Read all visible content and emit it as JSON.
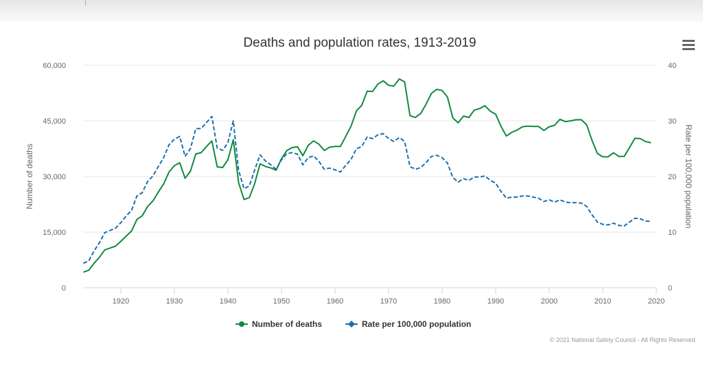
{
  "chart_data": {
    "type": "line",
    "title": "Deaths and population rates, 1913-2019",
    "xlabel": "",
    "ylabel": "Number of deaths",
    "y2label": "Rate per 100,000 population",
    "xlim": [
      1913,
      2020
    ],
    "ylim": [
      0,
      60000
    ],
    "y2lim": [
      0,
      40
    ],
    "x_ticks": [
      "1920",
      "1930",
      "1940",
      "1950",
      "1960",
      "1970",
      "1980",
      "1990",
      "2000",
      "2010",
      "2020"
    ],
    "y_ticks": [
      "0",
      "15,000",
      "30,000",
      "45,000",
      "60,000"
    ],
    "y2_ticks": [
      "0",
      "10",
      "20",
      "30",
      "40"
    ],
    "grid": true,
    "legend_position": "bottom-center",
    "colors": {
      "deaths": "#0f8a3c",
      "rate": "#1a6fb0"
    },
    "x": [
      1913,
      1914,
      1915,
      1916,
      1917,
      1918,
      1919,
      1920,
      1921,
      1922,
      1923,
      1924,
      1925,
      1926,
      1927,
      1928,
      1929,
      1930,
      1931,
      1932,
      1933,
      1934,
      1935,
      1936,
      1937,
      1938,
      1939,
      1940,
      1941,
      1942,
      1943,
      1944,
      1945,
      1946,
      1947,
      1948,
      1949,
      1950,
      1951,
      1952,
      1953,
      1954,
      1955,
      1956,
      1957,
      1958,
      1959,
      1960,
      1961,
      1962,
      1963,
      1964,
      1965,
      1966,
      1967,
      1968,
      1969,
      1970,
      1971,
      1972,
      1973,
      1974,
      1975,
      1976,
      1977,
      1978,
      1979,
      1980,
      1981,
      1982,
      1983,
      1984,
      1985,
      1986,
      1987,
      1988,
      1989,
      1990,
      1991,
      1992,
      1993,
      1994,
      1995,
      1996,
      1997,
      1998,
      1999,
      2000,
      2001,
      2002,
      2003,
      2004,
      2005,
      2006,
      2007,
      2008,
      2009,
      2010,
      2011,
      2012,
      2013,
      2014,
      2015,
      2016,
      2017,
      2018,
      2019
    ],
    "series": [
      {
        "name": "Number of deaths",
        "axis": "left",
        "style": "solid",
        "values": [
          4200,
          4700,
          6600,
          8200,
          10200,
          10700,
          11200,
          12500,
          13900,
          15300,
          18400,
          19400,
          21900,
          23400,
          25800,
          28000,
          31200,
          32900,
          33700,
          29500,
          31400,
          36100,
          36400,
          38100,
          39600,
          32600,
          32400,
          34500,
          39900,
          28300,
          23800,
          24300,
          28100,
          33400,
          32700,
          32300,
          31700,
          34800,
          37000,
          37800,
          38000,
          35600,
          38400,
          39600,
          38700,
          37000,
          37900,
          38100,
          38100,
          40800,
          43600,
          47700,
          49200,
          53000,
          52900,
          54900,
          55800,
          54600,
          54400,
          56300,
          55500,
          46400,
          45900,
          47000,
          49500,
          52400,
          53500,
          53200,
          51400,
          45800,
          44500,
          46300,
          45900,
          47900,
          48300,
          49100,
          47600,
          46800,
          43500,
          40900,
          41900,
          42500,
          43400,
          43600,
          43500,
          43500,
          42400,
          43400,
          43800,
          45400,
          44800,
          45000,
          45300,
          45300,
          43900,
          39700,
          36200,
          35300,
          35300,
          36400,
          35400,
          35400,
          37800,
          40300,
          40200,
          39400,
          39100
        ]
      },
      {
        "name": "Rate per 100,000 population",
        "axis": "right",
        "style": "dashed",
        "values": [
          4.4,
          4.8,
          6.6,
          8.1,
          9.9,
          10.3,
          10.7,
          11.7,
          12.9,
          13.9,
          16.5,
          17.1,
          19.1,
          20.1,
          21.8,
          23.4,
          25.7,
          26.7,
          27.2,
          23.6,
          25.0,
          28.6,
          28.6,
          29.7,
          30.8,
          25.1,
          24.7,
          26.1,
          30.0,
          21.1,
          17.8,
          18.3,
          21.2,
          23.9,
          22.8,
          22.1,
          21.3,
          23.0,
          24.1,
          24.3,
          24.0,
          22.1,
          23.4,
          23.7,
          22.7,
          21.3,
          21.5,
          21.2,
          20.8,
          22.0,
          23.1,
          25.0,
          25.4,
          27.1,
          26.8,
          27.5,
          27.7,
          26.8,
          26.3,
          27.0,
          26.3,
          21.8,
          21.3,
          21.6,
          22.5,
          23.6,
          23.8,
          23.4,
          22.4,
          19.8,
          19.0,
          19.6,
          19.3,
          19.9,
          19.9,
          20.1,
          19.3,
          18.8,
          17.3,
          16.1,
          16.3,
          16.3,
          16.5,
          16.5,
          16.3,
          16.1,
          15.5,
          15.8,
          15.4,
          15.8,
          15.4,
          15.3,
          15.3,
          15.2,
          14.6,
          13.1,
          11.8,
          11.4,
          11.3,
          11.6,
          11.2,
          11.1,
          11.8,
          12.5,
          12.4,
          12.0,
          11.9
        ]
      }
    ]
  },
  "menu_icon": "hamburger-menu-icon",
  "credits": "© 2021 National Safety Council - All Rights Reserved."
}
